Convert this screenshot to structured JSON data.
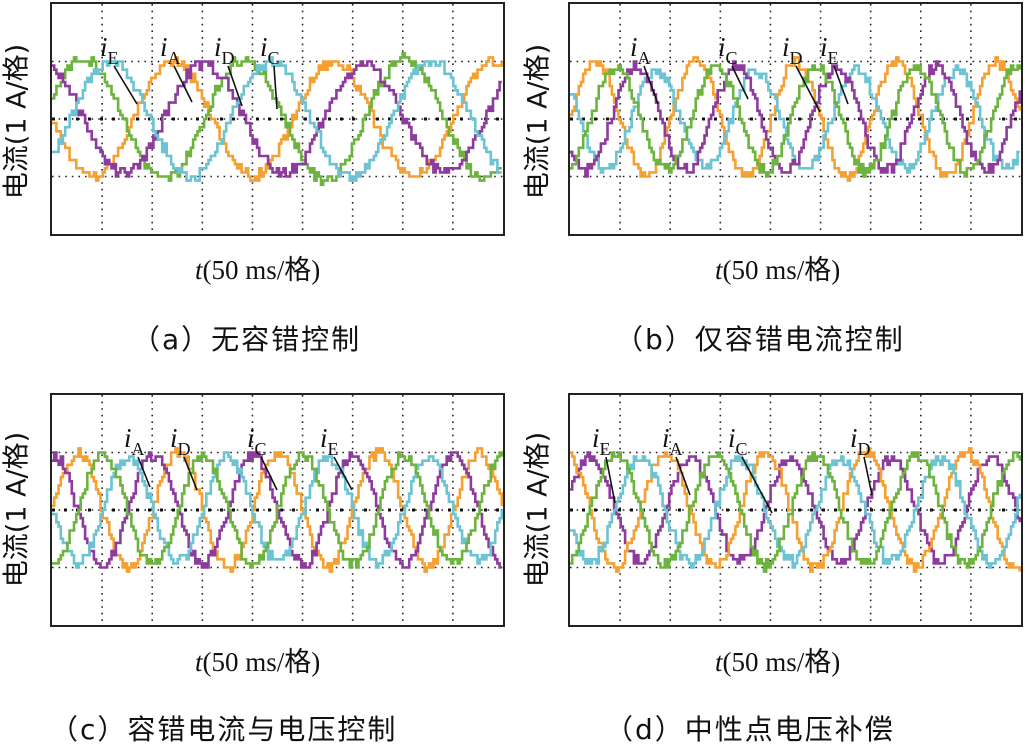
{
  "panels": [
    {
      "id": "a",
      "ylabel": "电流(1 A/格)",
      "xlabel_var": "t",
      "xlabel_rest": "(50 ms/格)",
      "caption": "（a）无容错控制",
      "labels": [
        [
          "i",
          "E"
        ],
        [
          "i",
          "A"
        ],
        [
          "i",
          "D"
        ],
        [
          "i",
          "C"
        ]
      ]
    },
    {
      "id": "b",
      "ylabel": "电流(1 A/格)",
      "xlabel_var": "t",
      "xlabel_rest": "(50 ms/格)",
      "caption": "（b）仅容错电流控制",
      "labels": [
        [
          "i",
          "A"
        ],
        [
          "i",
          "C"
        ],
        [
          "i",
          "D"
        ],
        [
          "i",
          "E"
        ]
      ]
    },
    {
      "id": "c",
      "ylabel": "电流(1 A/格)",
      "xlabel_var": "t",
      "xlabel_rest": "(50 ms/格)",
      "caption": "（c）容错电流与电压控制",
      "labels": [
        [
          "i",
          "A"
        ],
        [
          "i",
          "D"
        ],
        [
          "i",
          "C"
        ],
        [
          "i",
          "E"
        ]
      ]
    },
    {
      "id": "d",
      "ylabel": "电流(1 A/格)",
      "xlabel_var": "t",
      "xlabel_rest": "(50 ms/格)",
      "caption": "（d）中性点电压补偿",
      "labels": [
        [
          "i",
          "E"
        ],
        [
          "i",
          "A"
        ],
        [
          "i",
          "C"
        ],
        [
          "i",
          "D"
        ]
      ]
    }
  ],
  "colors": {
    "orange": "#F5A032",
    "purple": "#8E3B9E",
    "green": "#6DB33F",
    "cyan": "#6CC3D1",
    "grid": "#222222"
  },
  "chart_data": [
    {
      "type": "line",
      "title": "（a）无容错控制",
      "xlabel": "t(50 ms/格)",
      "ylabel": "电流(1 A/格)",
      "x_unit": "50 ms per division",
      "y_unit": "1 A per division",
      "xlim": [
        0,
        450
      ],
      "ylim": [
        -2,
        2
      ],
      "grid": true,
      "series": [
        {
          "name": "iE",
          "color": "#F5A032",
          "amplitude": 1.0,
          "period_ms": 160,
          "phase_deg": 180
        },
        {
          "name": "iA",
          "color": "#6DB33F",
          "amplitude": 1.05,
          "period_ms": 160,
          "phase_deg": 20
        },
        {
          "name": "iD",
          "color": "#8E3B9E",
          "amplitude": 0.95,
          "period_ms": 160,
          "phase_deg": 110
        },
        {
          "name": "iC",
          "color": "#6CC3D1",
          "amplitude": 1.0,
          "period_ms": 160,
          "phase_deg": 320
        }
      ]
    },
    {
      "type": "line",
      "title": "（b）仅容错电流控制",
      "xlabel": "t(50 ms/格)",
      "ylabel": "电流(1 A/格)",
      "xlim": [
        0,
        450
      ],
      "ylim": [
        -2,
        2
      ],
      "grid": true,
      "series": [
        {
          "name": "iA",
          "color": "#F5A032",
          "amplitude": 1.0,
          "period_ms": 100,
          "phase_deg": 0
        },
        {
          "name": "iC",
          "color": "#6CC3D1",
          "amplitude": 0.85,
          "period_ms": 100,
          "phase_deg": 144
        },
        {
          "name": "iD",
          "color": "#8E3B9E",
          "amplitude": 0.9,
          "period_ms": 100,
          "phase_deg": 216
        },
        {
          "name": "iE",
          "color": "#6DB33F",
          "amplitude": 0.9,
          "period_ms": 100,
          "phase_deg": 288
        }
      ]
    },
    {
      "type": "line",
      "title": "（c）容错电流与电压控制",
      "xlabel": "t(50 ms/格)",
      "ylabel": "电流(1 A/格)",
      "xlim": [
        0,
        450
      ],
      "ylim": [
        -2,
        2
      ],
      "grid": true,
      "series": [
        {
          "name": "iA",
          "color": "#F5A032",
          "amplitude": 1.0,
          "period_ms": 100,
          "phase_deg": 0
        },
        {
          "name": "iD",
          "color": "#8E3B9E",
          "amplitude": 0.95,
          "period_ms": 100,
          "phase_deg": 90
        },
        {
          "name": "iC",
          "color": "#6CC3D1",
          "amplitude": 0.9,
          "period_ms": 100,
          "phase_deg": 180
        },
        {
          "name": "iE",
          "color": "#6DB33F",
          "amplitude": 0.95,
          "period_ms": 100,
          "phase_deg": 270
        }
      ]
    },
    {
      "type": "line",
      "title": "（d）中性点电压补偿",
      "xlabel": "t(50 ms/格)",
      "ylabel": "电流(1 A/格)",
      "xlim": [
        0,
        450
      ],
      "ylim": [
        -2,
        2
      ],
      "grid": true,
      "series": [
        {
          "name": "iE",
          "color": "#8E3B9E",
          "amplitude": 0.9,
          "period_ms": 100,
          "phase_deg": 20
        },
        {
          "name": "iA",
          "color": "#F5A032",
          "amplitude": 1.0,
          "period_ms": 100,
          "phase_deg": 110
        },
        {
          "name": "iC",
          "color": "#6CC3D1",
          "amplitude": 0.9,
          "period_ms": 100,
          "phase_deg": 200
        },
        {
          "name": "iD",
          "color": "#6DB33F",
          "amplitude": 0.95,
          "period_ms": 100,
          "phase_deg": 290
        }
      ]
    }
  ]
}
